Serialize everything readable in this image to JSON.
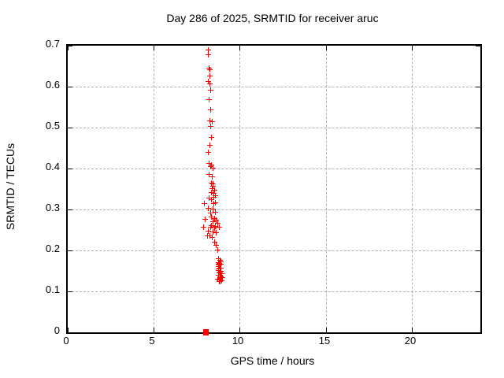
{
  "window": {
    "background": "#ffffff"
  },
  "chart_data": {
    "type": "scatter",
    "title": "Day 286 of 2025, SRMTID for receiver aruc",
    "xlabel": "GPS time / hours",
    "ylabel": "SRMTID / TECUs",
    "xlim": [
      0,
      24
    ],
    "ylim": [
      0,
      0.7
    ],
    "xticks": {
      "values": [
        0,
        5,
        10,
        15,
        20
      ],
      "labels": [
        "0",
        "5",
        "10",
        "15",
        "20"
      ]
    },
    "yticks": {
      "values": [
        0,
        0.1,
        0.2,
        0.3,
        0.4,
        0.5,
        0.6,
        0.7
      ],
      "labels": [
        "0",
        "0.1",
        "0.2",
        "0.3",
        "0.4",
        "0.5",
        "0.6",
        "0.7"
      ]
    },
    "grid": true,
    "legend_position": "none",
    "marker": "plus",
    "marker_color": "#ff0000",
    "grid_color": "#b0b0b0",
    "axis_color": "#000000",
    "series": [
      {
        "name": "SRMTID",
        "points": [
          [
            8.17,
            0.69
          ],
          [
            8.17,
            0.678
          ],
          [
            8.22,
            0.647
          ],
          [
            8.26,
            0.643
          ],
          [
            8.26,
            0.627
          ],
          [
            8.17,
            0.613
          ],
          [
            8.26,
            0.607
          ],
          [
            8.31,
            0.593
          ],
          [
            8.22,
            0.57
          ],
          [
            8.31,
            0.545
          ],
          [
            8.24,
            0.518
          ],
          [
            8.4,
            0.515
          ],
          [
            8.31,
            0.503
          ],
          [
            8.35,
            0.477
          ],
          [
            8.26,
            0.457
          ],
          [
            8.17,
            0.441
          ],
          [
            8.22,
            0.414
          ],
          [
            8.35,
            0.41
          ],
          [
            8.31,
            0.405
          ],
          [
            8.44,
            0.401
          ],
          [
            8.22,
            0.386
          ],
          [
            8.4,
            0.381
          ],
          [
            8.35,
            0.366
          ],
          [
            8.44,
            0.363
          ],
          [
            8.44,
            0.358
          ],
          [
            8.4,
            0.351
          ],
          [
            8.53,
            0.348
          ],
          [
            8.35,
            0.342
          ],
          [
            8.49,
            0.34
          ],
          [
            8.58,
            0.335
          ],
          [
            8.49,
            0.331
          ],
          [
            8.22,
            0.328
          ],
          [
            8.33,
            0.325
          ],
          [
            8.58,
            0.317
          ],
          [
            7.94,
            0.315
          ],
          [
            8.49,
            0.315
          ],
          [
            8.15,
            0.303
          ],
          [
            8.44,
            0.301
          ],
          [
            8.55,
            0.295
          ],
          [
            8.31,
            0.293
          ],
          [
            8.35,
            0.283
          ],
          [
            8.53,
            0.279
          ],
          [
            7.97,
            0.277
          ],
          [
            8.62,
            0.275
          ],
          [
            8.44,
            0.271
          ],
          [
            8.71,
            0.268
          ],
          [
            8.35,
            0.262
          ],
          [
            8.58,
            0.26
          ],
          [
            7.89,
            0.258
          ],
          [
            8.8,
            0.258
          ],
          [
            8.31,
            0.257
          ],
          [
            8.53,
            0.256
          ],
          [
            8.17,
            0.248
          ],
          [
            8.44,
            0.246
          ],
          [
            8.62,
            0.244
          ],
          [
            8.12,
            0.236
          ],
          [
            8.26,
            0.236
          ],
          [
            8.4,
            0.233
          ],
          [
            8.53,
            0.222
          ],
          [
            8.62,
            0.214
          ],
          [
            8.69,
            0.201
          ],
          [
            8.76,
            0.18
          ],
          [
            8.84,
            0.176
          ],
          [
            8.88,
            0.174
          ],
          [
            8.73,
            0.172
          ],
          [
            8.8,
            0.17
          ],
          [
            8.76,
            0.168
          ],
          [
            8.87,
            0.167
          ],
          [
            8.8,
            0.165
          ],
          [
            8.76,
            0.161
          ],
          [
            8.82,
            0.158
          ],
          [
            8.87,
            0.157
          ],
          [
            8.74,
            0.156
          ],
          [
            8.73,
            0.152
          ],
          [
            8.9,
            0.15
          ],
          [
            8.84,
            0.148
          ],
          [
            8.78,
            0.147
          ],
          [
            8.92,
            0.144
          ],
          [
            8.76,
            0.14
          ],
          [
            8.87,
            0.136
          ],
          [
            8.99,
            0.135
          ],
          [
            8.85,
            0.132
          ],
          [
            8.69,
            0.131
          ],
          [
            8.8,
            0.129
          ],
          [
            8.92,
            0.127
          ],
          [
            8.84,
            0.125
          ],
          [
            8.78,
            0.125
          ]
        ]
      }
    ],
    "zero_point": {
      "x": 8.0,
      "y": 0.0,
      "marker": "filled-square"
    }
  }
}
